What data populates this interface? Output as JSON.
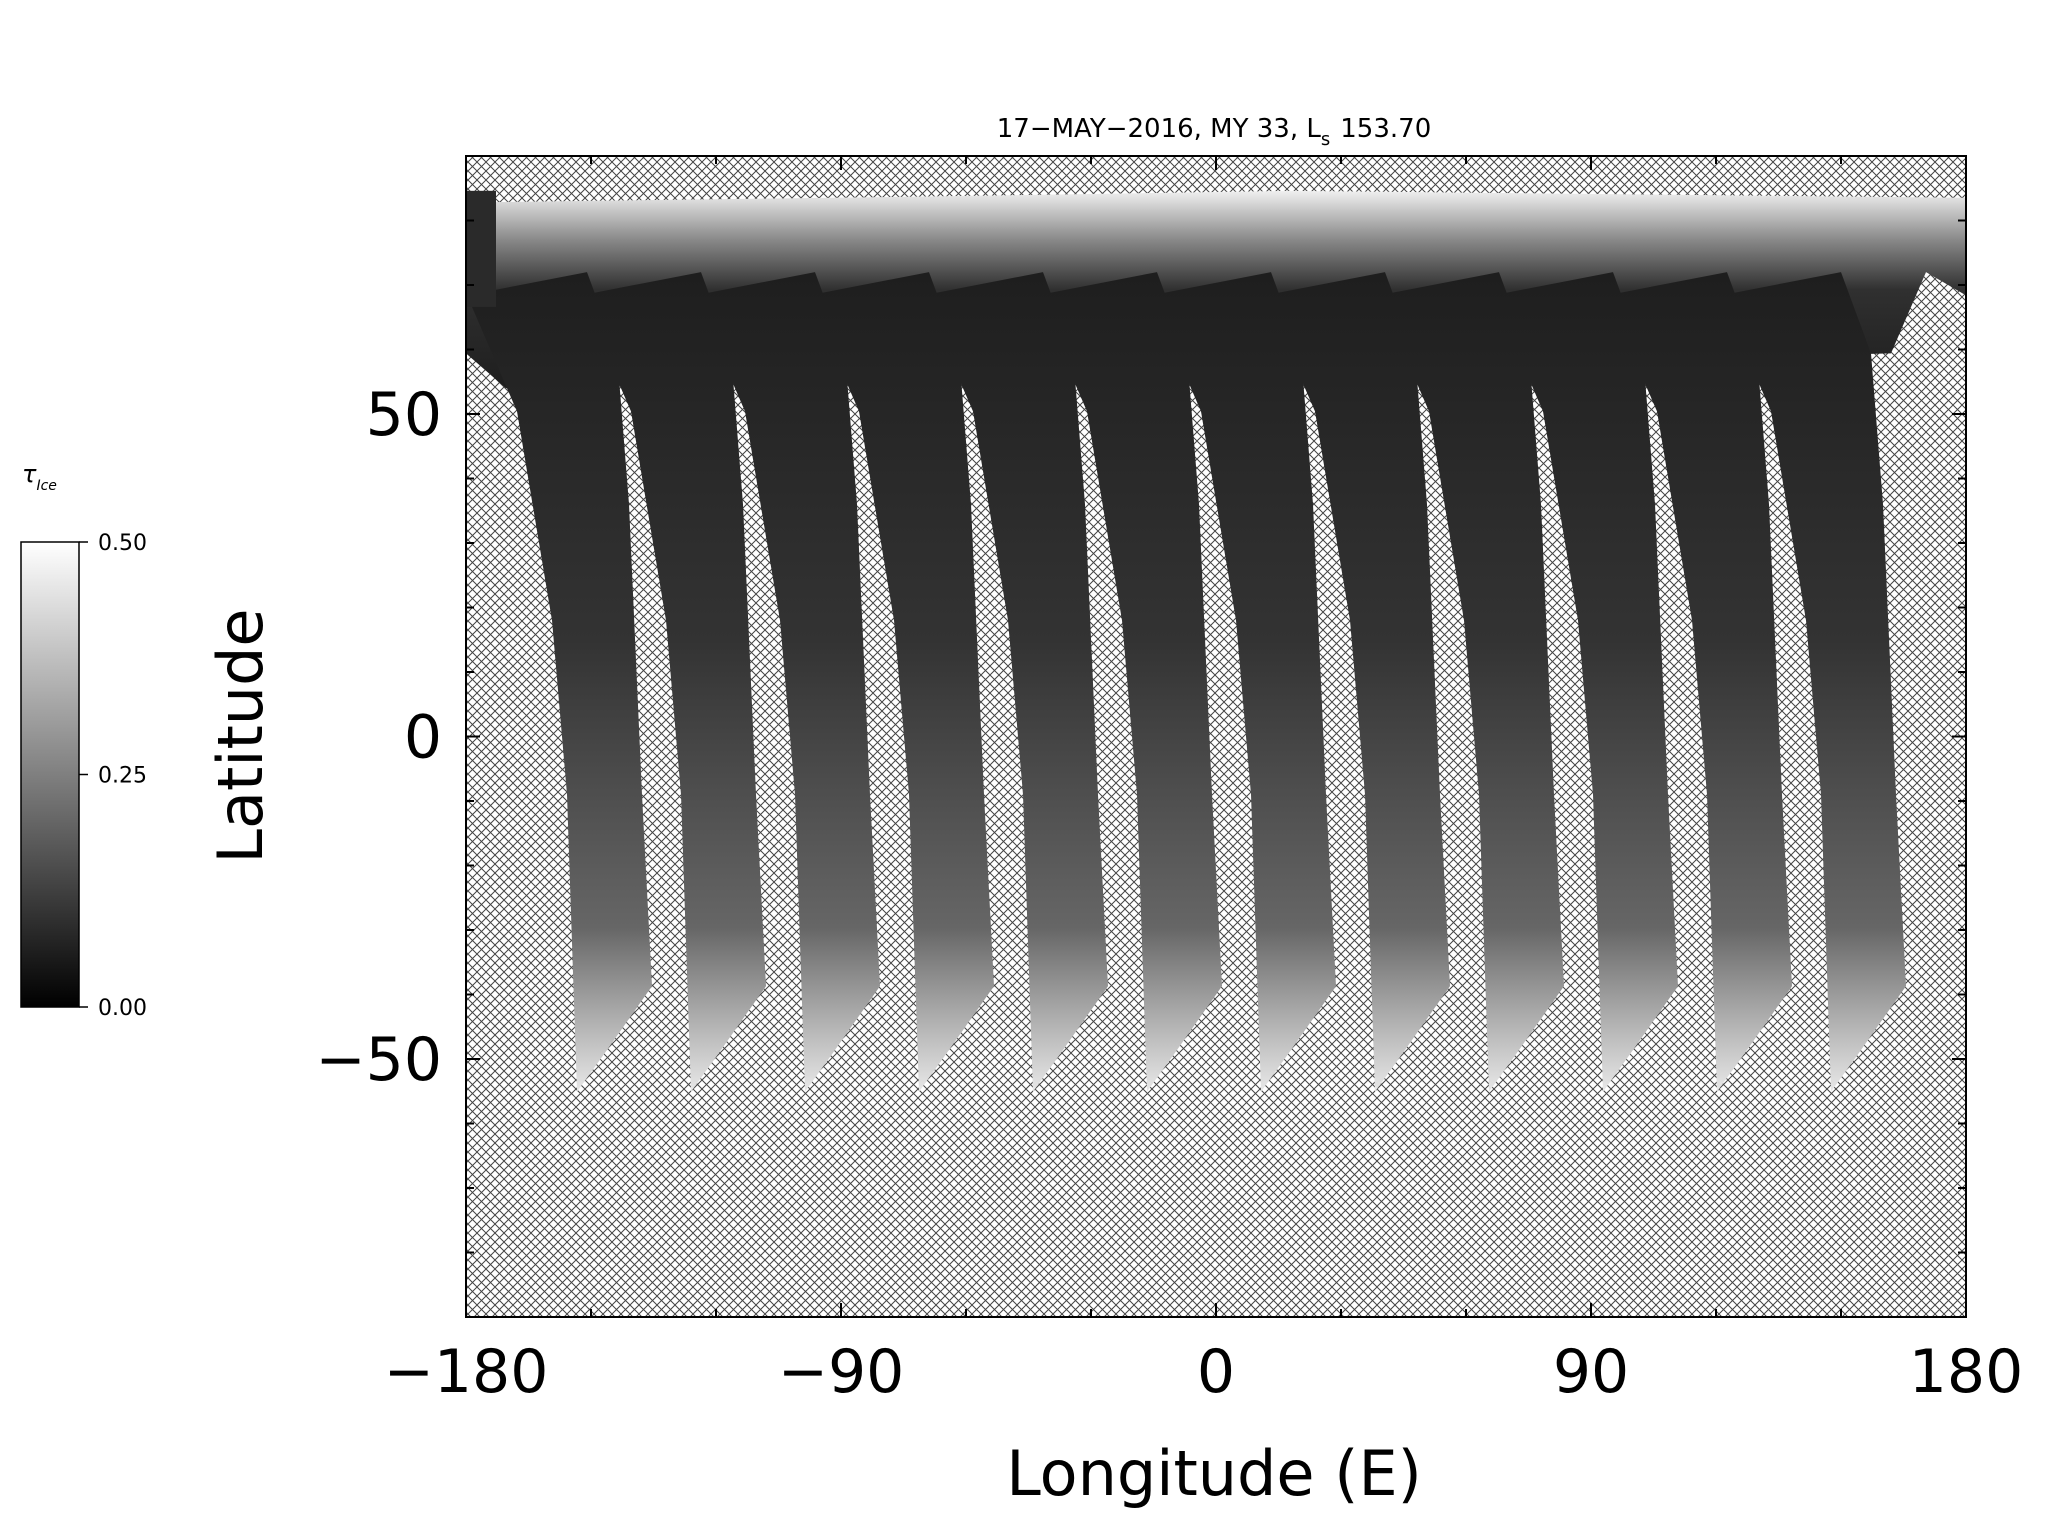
{
  "chart_data": {
    "type": "map",
    "title": "17−MAY−2016, MY 33,  L",
    "title_subscript": "s",
    "title_value": "153.70",
    "xlabel": "Longitude (E)",
    "ylabel": "Latitude",
    "xlim": [
      -180,
      180
    ],
    "ylim": [
      -90,
      90
    ],
    "xticks": [
      {
        "value": -180,
        "label": "−180"
      },
      {
        "value": -90,
        "label": "−90"
      },
      0,
      90,
      180
    ],
    "yticks": [
      {
        "value": -50,
        "label": "−50"
      },
      0,
      50
    ],
    "yminorticks": [
      -80,
      -70,
      -60,
      -40,
      -30,
      -20,
      -10,
      10,
      20,
      30,
      40,
      60,
      70,
      80
    ],
    "xminorticks": [
      -150,
      -120,
      -60,
      -30,
      30,
      60,
      120,
      150
    ],
    "colorbar_label": "τ",
    "colorbar_label_subscript": "Ice",
    "colorbar_lim": [
      0,
      0.5
    ],
    "colorbar_ticks": [
      {
        "value": 0,
        "label": "0.00"
      },
      {
        "value": 0.25,
        "label": "0.25"
      },
      {
        "value": 0.5,
        "label": "0.50"
      }
    ],
    "colormap": [
      "#000000",
      "#ffffff"
    ]
  }
}
